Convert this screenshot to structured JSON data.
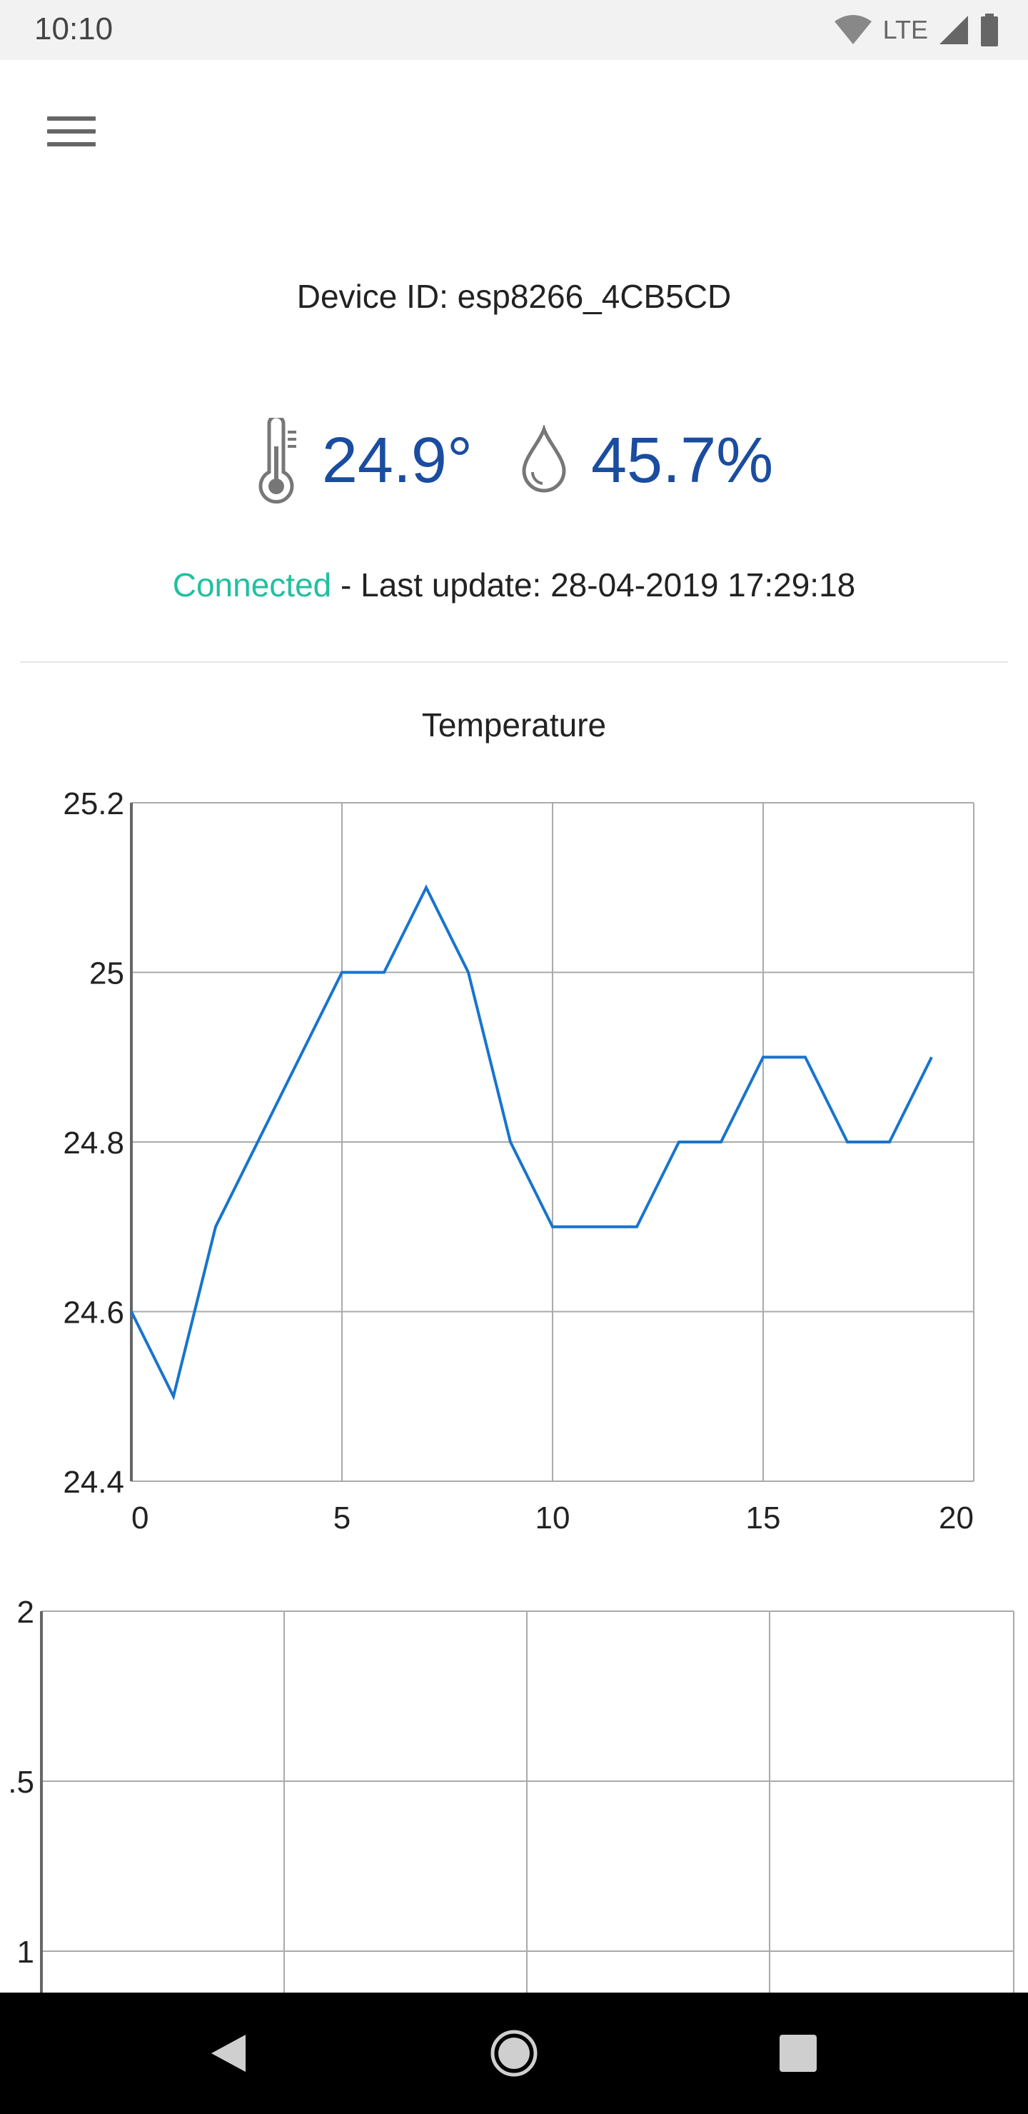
{
  "status_bar": {
    "time": "10:10",
    "network_label": "LTE",
    "icons": [
      "wifi-icon",
      "signal-icon",
      "battery-icon"
    ]
  },
  "header": {
    "menu_icon": "hamburger-menu-icon"
  },
  "device": {
    "id_text": "Device ID: esp8266_4CB5CD"
  },
  "readings": {
    "temperature": "24.9°",
    "humidity": "45.7%",
    "temperature_icon": "thermometer-icon",
    "humidity_icon": "water-drop-icon",
    "value_color": "#1a4da0"
  },
  "connection": {
    "state": "Connected",
    "state_color": "#20c0a0",
    "last_update_text": " - Last update: 28-04-2019 17:29:18"
  },
  "chart_data": [
    {
      "type": "line",
      "title": "Temperature",
      "x": [
        0,
        1,
        2,
        3,
        4,
        5,
        6,
        7,
        8,
        9,
        10,
        11,
        12,
        13,
        14,
        15,
        16,
        17,
        18,
        19
      ],
      "series": [
        {
          "values": [
            24.6,
            24.5,
            24.7,
            24.8,
            24.9,
            25.0,
            25.0,
            25.1,
            25.0,
            24.8,
            24.7,
            24.7,
            24.7,
            24.8,
            24.8,
            24.9,
            24.9,
            24.8,
            24.8,
            24.9
          ],
          "color": "#1874cd"
        }
      ],
      "xlim": [
        0,
        20
      ],
      "ylim": [
        24.4,
        25.2
      ],
      "x_ticks": [
        0,
        5,
        10,
        15,
        20
      ],
      "y_ticks": [
        24.4,
        24.6,
        24.8,
        25,
        25.2
      ],
      "x_tick_labels": [
        "0",
        "5",
        "10",
        "15",
        "20"
      ],
      "y_tick_labels": [
        "24.4",
        "24.6",
        "24.8",
        "25",
        "25.2"
      ],
      "grid": true
    },
    {
      "type": "line",
      "title": "",
      "series": [],
      "y_tick_labels_visible": [
        "2",
        ".5",
        "1"
      ],
      "grid": true
    }
  ],
  "nav_bar": {
    "icons": [
      "back-icon",
      "home-icon",
      "recents-icon"
    ]
  }
}
